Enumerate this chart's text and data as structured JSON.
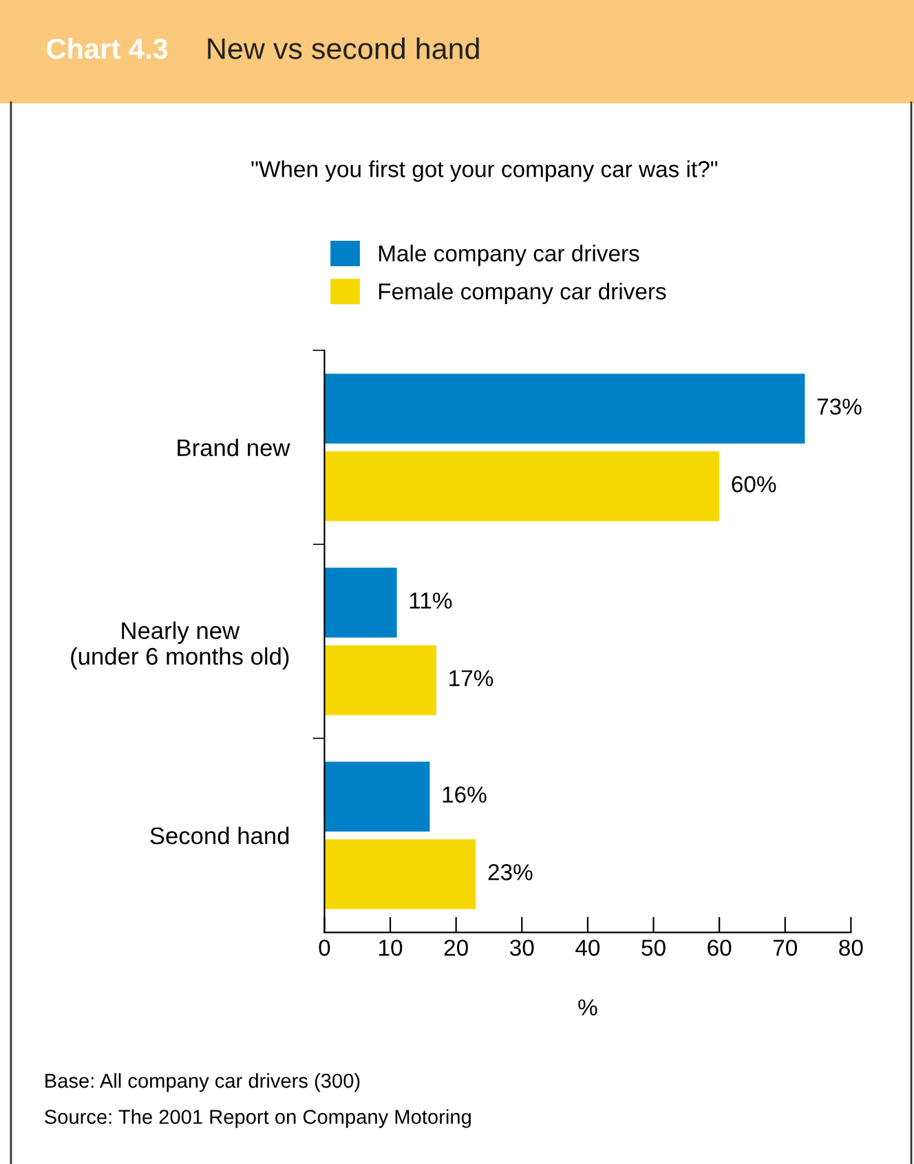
{
  "chart_data": {
    "type": "bar",
    "orientation": "horizontal",
    "title": "New vs second hand",
    "subtitle": "\"When you first got your company car was it?\"",
    "xlabel": "%",
    "categories": [
      "Brand new",
      "Nearly new\n(under 6 months old)",
      "Second hand"
    ],
    "series": [
      {
        "name": "Male company car drivers",
        "color": "#0080c6",
        "values": [
          73,
          11,
          16
        ],
        "value_labels": [
          "73%",
          "11%",
          "16%"
        ]
      },
      {
        "name": "Female company car drivers",
        "color": "#f5d800",
        "values": [
          60,
          17,
          23
        ],
        "value_labels": [
          "60%",
          "17%",
          "23%"
        ]
      }
    ],
    "xlim": [
      0,
      80
    ],
    "xticks": [
      0,
      10,
      20,
      30,
      40,
      50,
      60,
      70,
      80
    ],
    "grid": false,
    "legend": "top",
    "annotations": [
      "Chart 4.3",
      "Base: All company car drivers (300)",
      "Source: The 2001 Report on Company Motoring"
    ]
  }
}
